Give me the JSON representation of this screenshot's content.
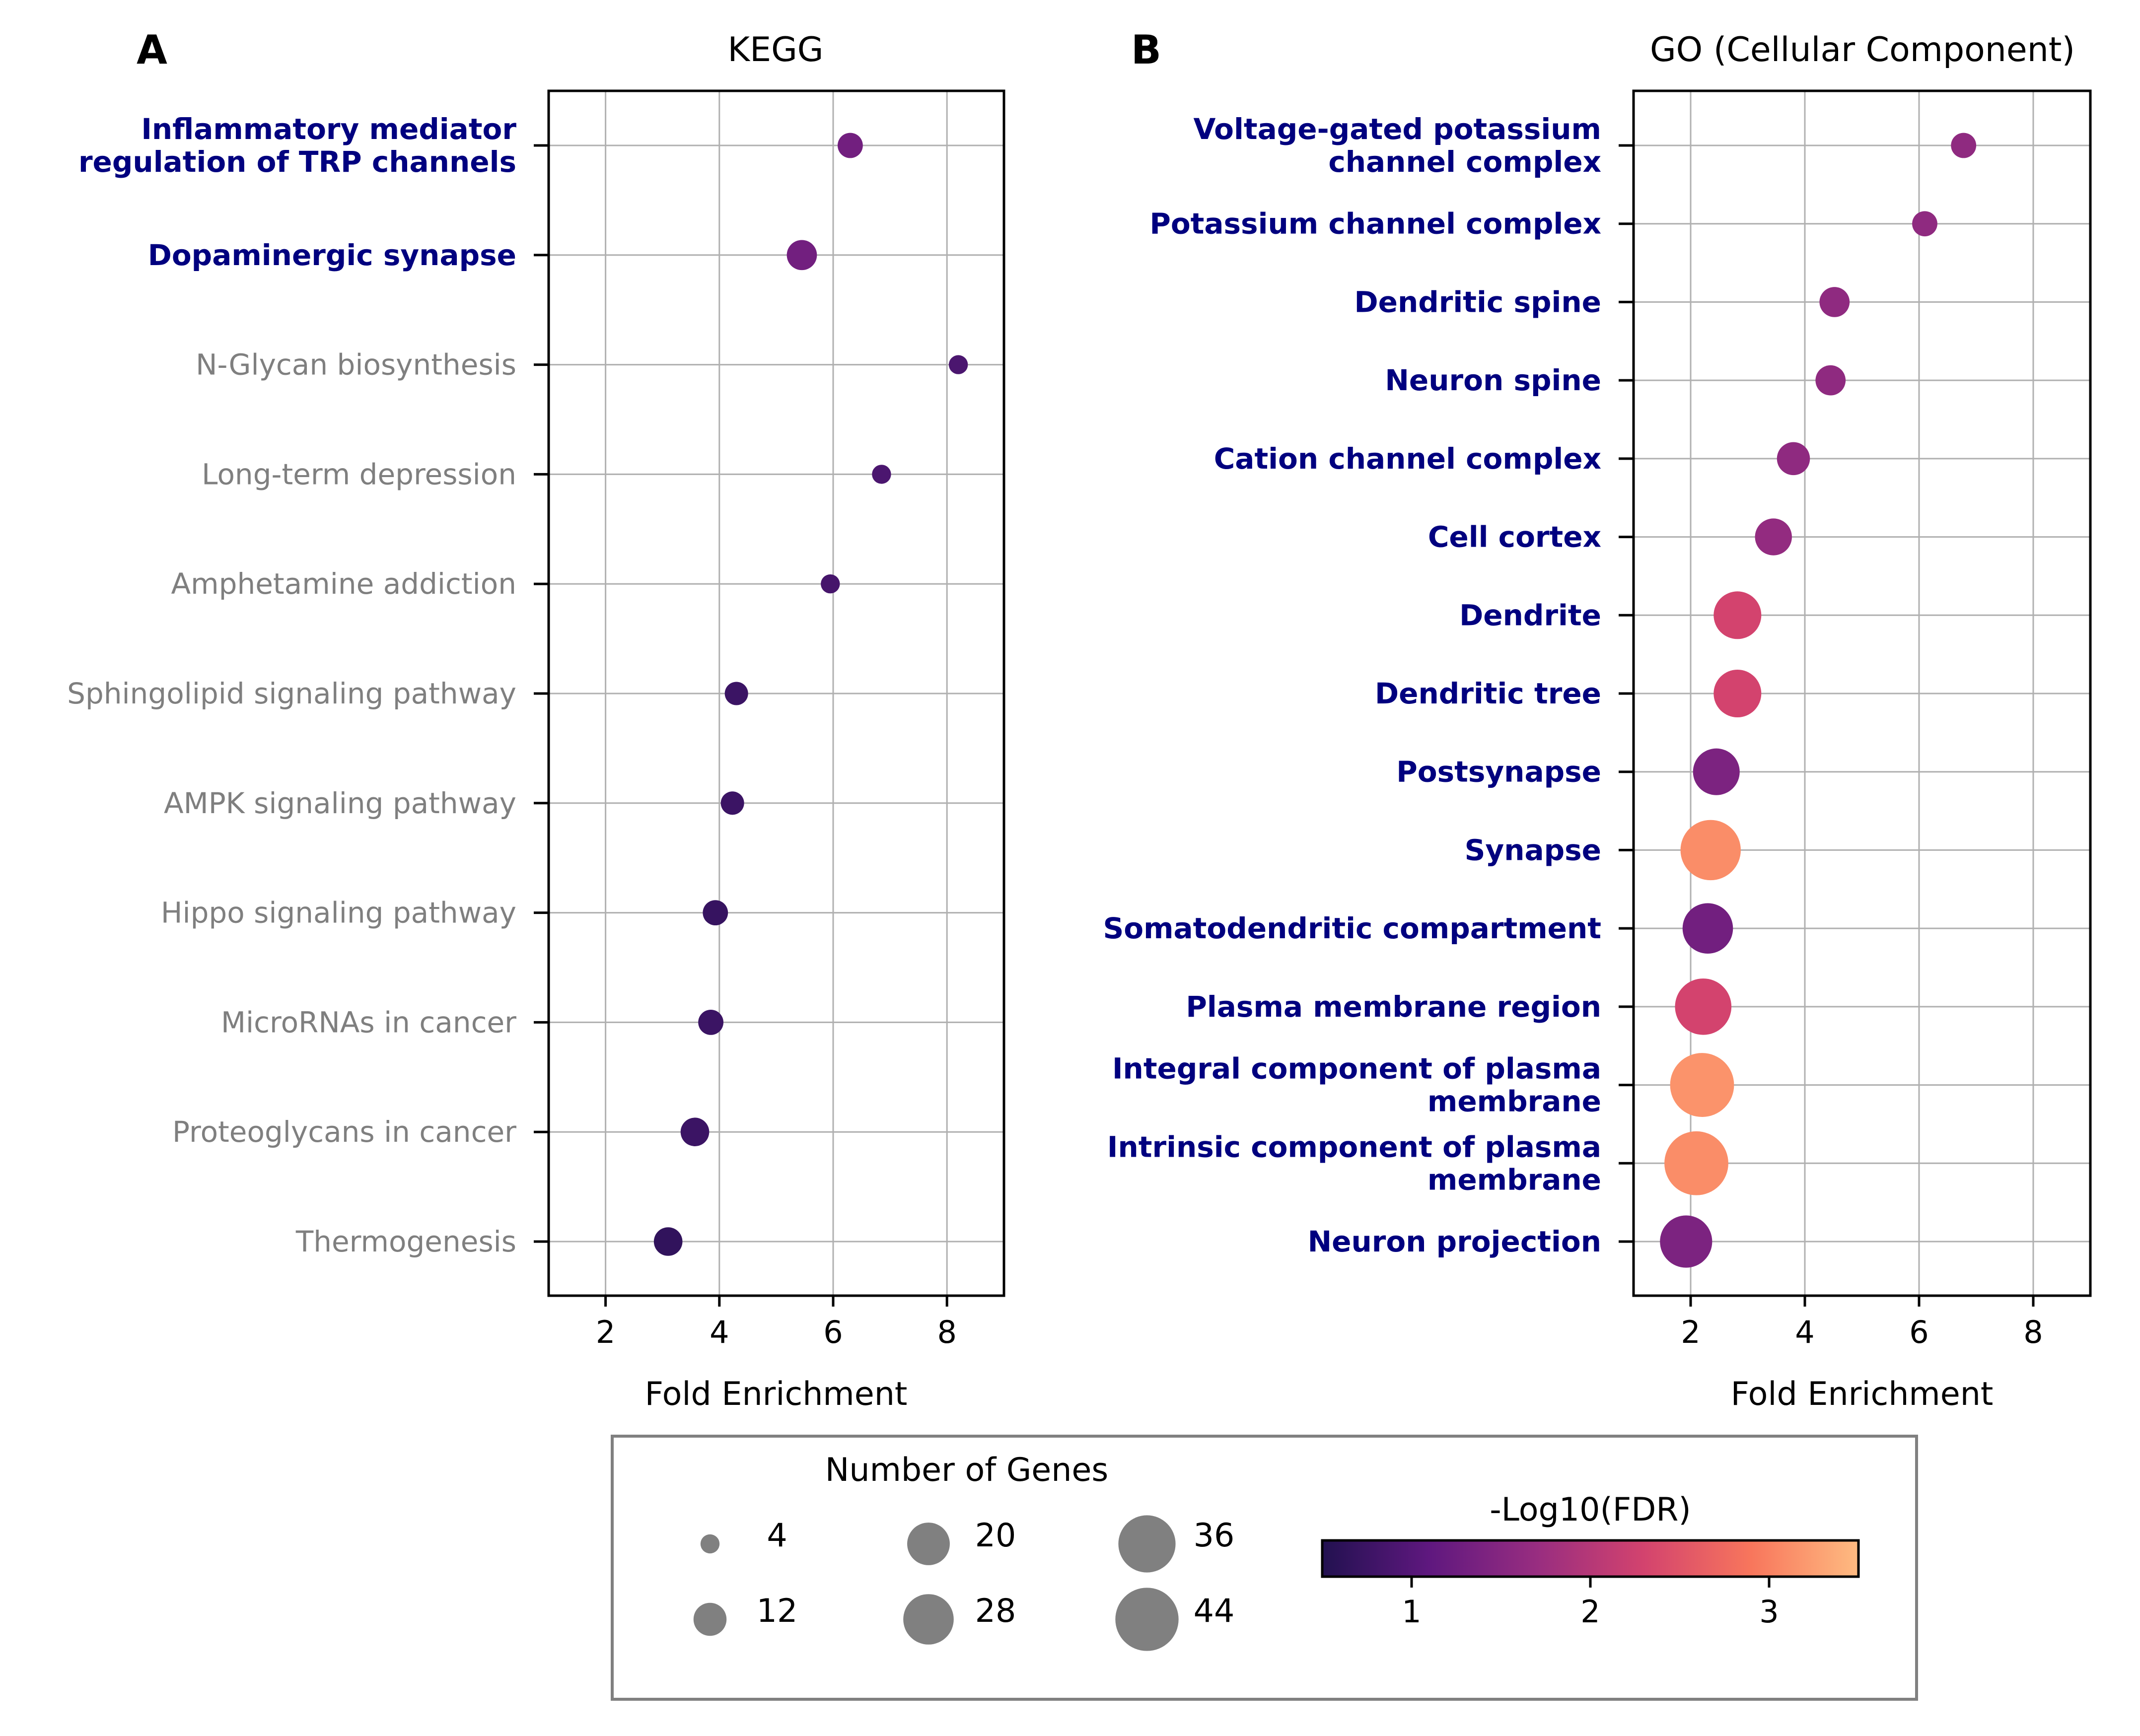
{
  "chart_data": [
    {
      "panel": "A",
      "type": "scatter",
      "title": "KEGG",
      "xlabel": "Fold Enrichment",
      "xlim": [
        1,
        9
      ],
      "xticks": [
        2,
        4,
        6,
        8
      ],
      "grid": true,
      "points": [
        {
          "category": [
            "Inflammatory mediator",
            "regulation of TRP channels"
          ],
          "emphasis": true,
          "x": 6.3,
          "genes": 7,
          "neg_log10_fdr": 1.3
        },
        {
          "category": [
            "Dopaminergic synapse"
          ],
          "emphasis": true,
          "x": 5.45,
          "genes": 10,
          "neg_log10_fdr": 1.3
        },
        {
          "category": [
            "N-Glycan biosynthesis"
          ],
          "emphasis": false,
          "x": 8.2,
          "genes": 4,
          "neg_log10_fdr": 0.9
        },
        {
          "category": [
            "Long-term depression"
          ],
          "emphasis": false,
          "x": 6.85,
          "genes": 4,
          "neg_log10_fdr": 0.9
        },
        {
          "category": [
            "Amphetamine addiction"
          ],
          "emphasis": false,
          "x": 5.95,
          "genes": 4,
          "neg_log10_fdr": 0.85
        },
        {
          "category": [
            "Sphingolipid signaling pathway"
          ],
          "emphasis": false,
          "x": 4.3,
          "genes": 6,
          "neg_log10_fdr": 0.75
        },
        {
          "category": [
            "AMPK signaling pathway"
          ],
          "emphasis": false,
          "x": 4.23,
          "genes": 6,
          "neg_log10_fdr": 0.75
        },
        {
          "category": [
            "Hippo signaling pathway"
          ],
          "emphasis": false,
          "x": 3.93,
          "genes": 7,
          "neg_log10_fdr": 0.7
        },
        {
          "category": [
            "MicroRNAs in cancer"
          ],
          "emphasis": false,
          "x": 3.85,
          "genes": 7,
          "neg_log10_fdr": 0.75
        },
        {
          "category": [
            "Proteoglycans in cancer"
          ],
          "emphasis": false,
          "x": 3.57,
          "genes": 9,
          "neg_log10_fdr": 0.75
        },
        {
          "category": [
            "Thermogenesis"
          ],
          "emphasis": false,
          "x": 3.1,
          "genes": 9,
          "neg_log10_fdr": 0.65
        }
      ]
    },
    {
      "panel": "B",
      "type": "scatter",
      "title": "GO (Cellular Component)",
      "xlabel": "Fold Enrichment",
      "xlim": [
        1,
        9
      ],
      "xticks": [
        2,
        4,
        6,
        8
      ],
      "grid": true,
      "points": [
        {
          "category": [
            "Voltage-gated potassium",
            "channel complex"
          ],
          "emphasis": true,
          "x": 6.78,
          "genes": 7,
          "neg_log10_fdr": 1.6
        },
        {
          "category": [
            "Potassium channel complex"
          ],
          "emphasis": true,
          "x": 6.1,
          "genes": 7,
          "neg_log10_fdr": 1.6
        },
        {
          "category": [
            "Dendritic spine"
          ],
          "emphasis": true,
          "x": 4.52,
          "genes": 10,
          "neg_log10_fdr": 1.6
        },
        {
          "category": [
            "Neuron spine"
          ],
          "emphasis": true,
          "x": 4.45,
          "genes": 10,
          "neg_log10_fdr": 1.6
        },
        {
          "category": [
            "Cation channel complex"
          ],
          "emphasis": true,
          "x": 3.8,
          "genes": 12,
          "neg_log10_fdr": 1.6
        },
        {
          "category": [
            "Cell cortex"
          ],
          "emphasis": true,
          "x": 3.45,
          "genes": 15,
          "neg_log10_fdr": 1.65
        },
        {
          "category": [
            "Dendrite"
          ],
          "emphasis": true,
          "x": 2.82,
          "genes": 25,
          "neg_log10_fdr": 2.3
        },
        {
          "category": [
            "Dendritic tree"
          ],
          "emphasis": true,
          "x": 2.82,
          "genes": 25,
          "neg_log10_fdr": 2.3
        },
        {
          "category": [
            "Postsynapse"
          ],
          "emphasis": true,
          "x": 2.45,
          "genes": 24,
          "neg_log10_fdr": 1.4
        },
        {
          "category": [
            "Synapse"
          ],
          "emphasis": true,
          "x": 2.35,
          "genes": 40,
          "neg_log10_fdr": 3.1
        },
        {
          "category": [
            "Somatodendritic compartment"
          ],
          "emphasis": true,
          "x": 2.3,
          "genes": 28,
          "neg_log10_fdr": 1.3
        },
        {
          "category": [
            "Plasma membrane region"
          ],
          "emphasis": true,
          "x": 2.22,
          "genes": 35,
          "neg_log10_fdr": 2.3
        },
        {
          "category": [
            "Integral component of plasma",
            "membrane"
          ],
          "emphasis": true,
          "x": 2.2,
          "genes": 45,
          "neg_log10_fdr": 3.15
        },
        {
          "category": [
            "Intrinsic component of plasma",
            "membrane"
          ],
          "emphasis": true,
          "x": 2.1,
          "genes": 45,
          "neg_log10_fdr": 3.1
        },
        {
          "category": [
            "Neuron projection"
          ],
          "emphasis": true,
          "x": 1.92,
          "genes": 30,
          "neg_log10_fdr": 1.4
        }
      ]
    }
  ],
  "panel_a": {
    "letter": "A",
    "title": "KEGG",
    "xlabel": "Fold Enrichment"
  },
  "panel_b": {
    "letter": "B",
    "title": "GO (Cellular Component)",
    "xlabel": "Fold Enrichment"
  },
  "legend": {
    "size_title": "Number of Genes",
    "size_values": [
      4,
      12,
      20,
      28,
      36,
      44
    ],
    "color_title": "-Log10(FDR)",
    "color_range": [
      0.5,
      3.5
    ],
    "color_ticks": [
      1,
      2,
      3
    ],
    "colormap": [
      "#221150",
      "#5f187f",
      "#982d80",
      "#d3436e",
      "#f8765c",
      "#febb81"
    ]
  },
  "colors": {
    "emphasis_text": "#00007f",
    "muted_text": "#7f7f7f",
    "grid": "#b0b0b0",
    "size_marker": "#808080",
    "legend_border": "#808080"
  }
}
